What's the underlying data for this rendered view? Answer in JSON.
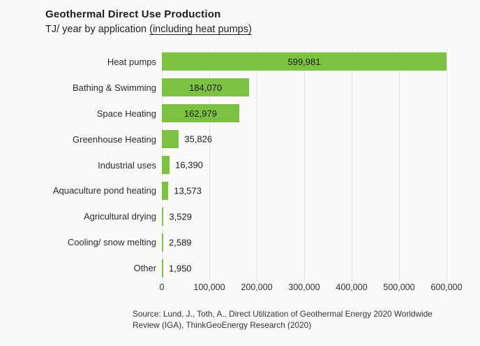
{
  "header": {
    "title": "Geothermal Direct Use Production",
    "subtitle_prefix": "TJ/ year by application ",
    "subtitle_underlined": "(including heat pumps)"
  },
  "source": {
    "line1": "Source: Lund, J., Toth, A., Direct Utilization of Geothermal Energy 2020 Worldwide",
    "line2": "Review (IGA), ThinkGeoEnergy Research (2020)"
  },
  "chart_data": {
    "type": "bar",
    "orientation": "horizontal",
    "title": "Geothermal Direct Use Production",
    "subtitle": "TJ/ year by application (including heat pumps)",
    "categories": [
      "Heat pumps",
      "Bathing & Swimming",
      "Space Heating",
      "Greenhouse Heating",
      "Industrial uses",
      "Aquaculture pond heating",
      "Agricultural drying",
      "Cooling/ snow melting",
      "Other"
    ],
    "values": [
      599981,
      184070,
      162979,
      35826,
      16390,
      13573,
      3529,
      2589,
      1950
    ],
    "value_labels": [
      "599,981",
      "184,070",
      "162,979",
      "35,826",
      "16,390",
      "13,573",
      "3,529",
      "2,589",
      "1,950"
    ],
    "xlabel": "",
    "ylabel": "",
    "xlim": [
      0,
      600000
    ],
    "x_ticks": [
      0,
      100000,
      200000,
      300000,
      400000,
      500000,
      600000
    ],
    "x_tick_labels": [
      "0",
      "100,000",
      "200,000",
      "300,000",
      "400,000",
      "500,000",
      "600,000"
    ],
    "grid": true,
    "legend": "none",
    "bar_color": "#7CC142",
    "gridline_color": "#e3e3e3",
    "value_label_inside_threshold": 100000
  }
}
